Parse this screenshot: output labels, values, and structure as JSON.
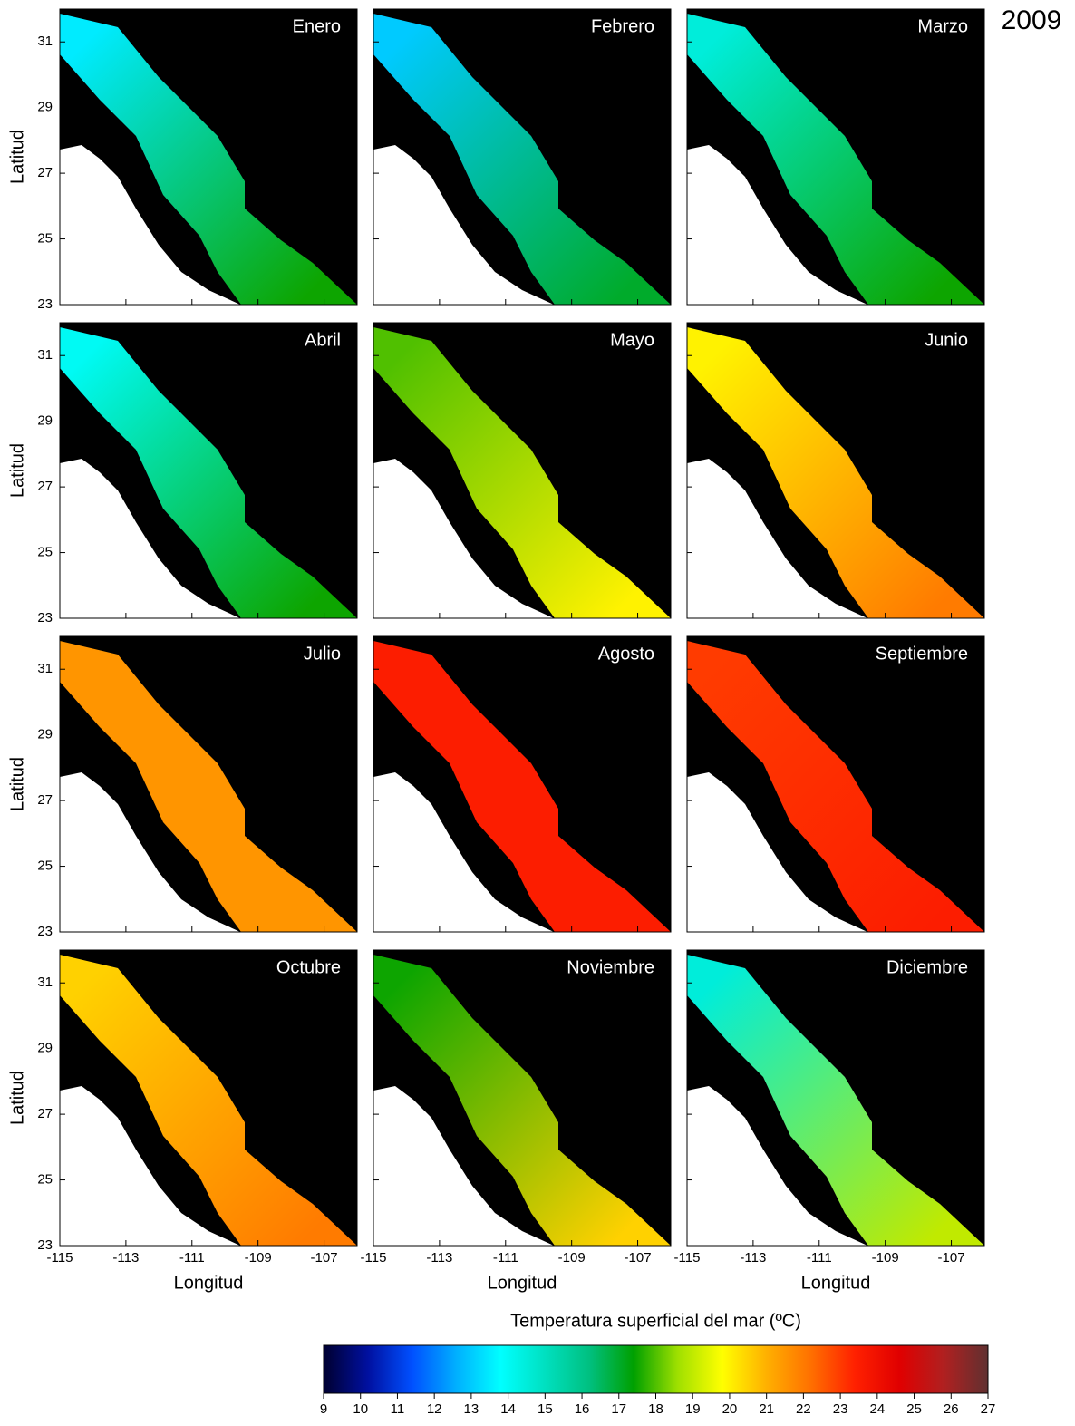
{
  "title": "2009",
  "y_label": "Latitud",
  "x_label": "Longitud",
  "xlim": [
    -115,
    -106
  ],
  "ylim": [
    23,
    32
  ],
  "xticks": [
    -115,
    -113,
    -111,
    -109,
    -107
  ],
  "yticks": [
    23,
    25,
    27,
    29,
    31
  ],
  "panels": [
    {
      "label": "Enero",
      "sst_north": 13.5,
      "sst_south": 17.5
    },
    {
      "label": "Febrero",
      "sst_north": 13,
      "sst_south": 17
    },
    {
      "label": "Marzo",
      "sst_north": 14.5,
      "sst_south": 17.5
    },
    {
      "label": "Abril",
      "sst_north": 14,
      "sst_south": 17.5
    },
    {
      "label": "Mayo",
      "sst_north": 18,
      "sst_south": 20
    },
    {
      "label": "Junio",
      "sst_north": 20,
      "sst_south": 22
    },
    {
      "label": "Julio",
      "sst_north": 21.5,
      "sst_south": 21.5
    },
    {
      "label": "Agosto",
      "sst_north": 23.5,
      "sst_south": 23.5
    },
    {
      "label": "Septiembre",
      "sst_north": 23,
      "sst_south": 23.5
    },
    {
      "label": "Octubre",
      "sst_north": 20.5,
      "sst_south": 22
    },
    {
      "label": "Noviembre",
      "sst_north": 17.5,
      "sst_south": 20.5
    },
    {
      "label": "Diciembre",
      "sst_north": 14.5,
      "sst_south": 19
    }
  ],
  "colorbar": {
    "title": "Temperatura superficial del mar (ºC)",
    "lim": [
      9,
      27
    ],
    "ticks": [
      9,
      10,
      11,
      12,
      13,
      14,
      15,
      16,
      17,
      18,
      19,
      20,
      21,
      22,
      23,
      24,
      25,
      26,
      27
    ],
    "colors": [
      "#000030",
      "#0010a0",
      "#0050ff",
      "#00b0ff",
      "#00ffff",
      "#00e0c0",
      "#00c080",
      "#00a000",
      "#a0e000",
      "#ffff00",
      "#ffb000",
      "#ff7000",
      "#ff2000",
      "#e00000",
      "#b02020",
      "#603030"
    ]
  }
}
